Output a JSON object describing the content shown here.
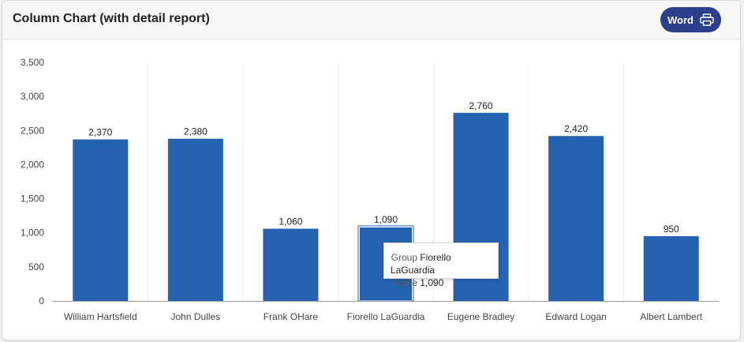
{
  "header": {
    "title": "Column Chart (with detail report)",
    "word_button_label": "Word",
    "word_button_icon": "printer-icon"
  },
  "colors": {
    "bar": "#2563b0",
    "bar_highlight_stroke": "#ffffff",
    "button": "#2b3f8c"
  },
  "tooltip": {
    "group_label": "Group",
    "group_value": "Fiorello LaGuardia",
    "value_label": "Value",
    "value_value": "1,090"
  },
  "chart_data": {
    "type": "bar",
    "categories": [
      "William Hartsfield",
      "John Dulles",
      "Frank OHare",
      "Fiorello LaGuardia",
      "Eugene Bradley",
      "Edward Logan",
      "Albert Lambert"
    ],
    "values": [
      2370,
      2380,
      1060,
      1090,
      2760,
      2420,
      950
    ],
    "data_labels": [
      "2,370",
      "2,380",
      "1,060",
      "1,090",
      "2,760",
      "2,420",
      "950"
    ],
    "yticks": [
      "0",
      "500",
      "1,000",
      "1,500",
      "2,000",
      "2,500",
      "3,000",
      "3,500"
    ],
    "ylim": [
      0,
      3500
    ],
    "highlighted_category": "Fiorello LaGuardia",
    "grid": "vertical category separators"
  }
}
